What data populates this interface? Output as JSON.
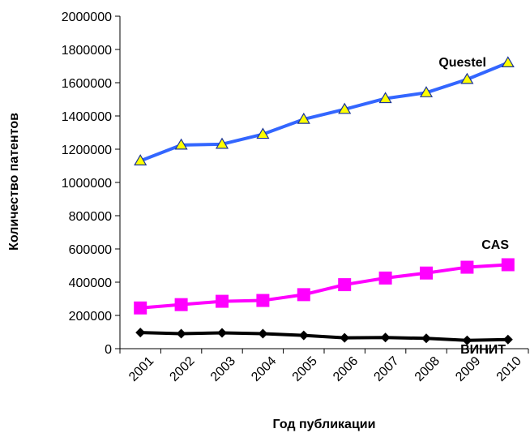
{
  "chart_data": {
    "type": "line",
    "title": "",
    "xlabel": "Год публикации",
    "ylabel": "Количество патентов",
    "categories": [
      "2001",
      "2002",
      "2003",
      "2004",
      "2005",
      "2006",
      "2007",
      "2008",
      "2009",
      "2010"
    ],
    "yticks": [
      "0",
      "200000",
      "400000",
      "600000",
      "800000",
      "1000000",
      "1200000",
      "1400000",
      "1600000",
      "1800000",
      "2000000"
    ],
    "ylim": [
      0,
      2000000
    ],
    "grid": false,
    "series": [
      {
        "name": "Questel",
        "marker": "triangle",
        "color": "#3366ff",
        "marker_fill": "#ffff00",
        "values": [
          1130000,
          1225000,
          1230000,
          1290000,
          1380000,
          1440000,
          1505000,
          1540000,
          1620000,
          1720000
        ]
      },
      {
        "name": "CAS",
        "marker": "square",
        "color": "#ff00ff",
        "marker_fill": "#ff00ff",
        "values": [
          245000,
          265000,
          285000,
          290000,
          325000,
          385000,
          425000,
          455000,
          490000,
          505000
        ]
      },
      {
        "name": "ВИНИТ",
        "marker": "diamond",
        "color": "#000000",
        "marker_fill": "#000000",
        "values": [
          97000,
          90000,
          95000,
          90000,
          80000,
          65000,
          67000,
          62000,
          50000,
          55000
        ]
      }
    ]
  }
}
